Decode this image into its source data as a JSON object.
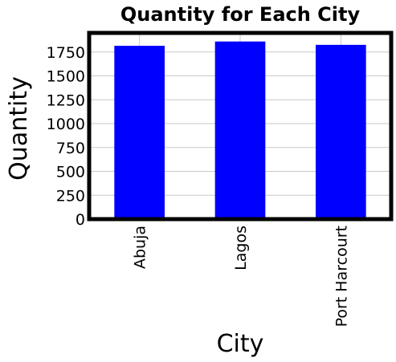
{
  "chart_data": {
    "type": "bar",
    "title": "Quantity for Each City",
    "xlabel": "City",
    "ylabel": "Quantity",
    "categories": [
      "Abuja",
      "Lagos",
      "Port Harcourt"
    ],
    "values": [
      1815,
      1860,
      1825
    ],
    "ylim": [
      0,
      1950
    ],
    "yticks": [
      0,
      250,
      500,
      750,
      1000,
      1250,
      1500,
      1750
    ],
    "grid": true,
    "legend": "none",
    "bar_color": "#0000ff"
  }
}
